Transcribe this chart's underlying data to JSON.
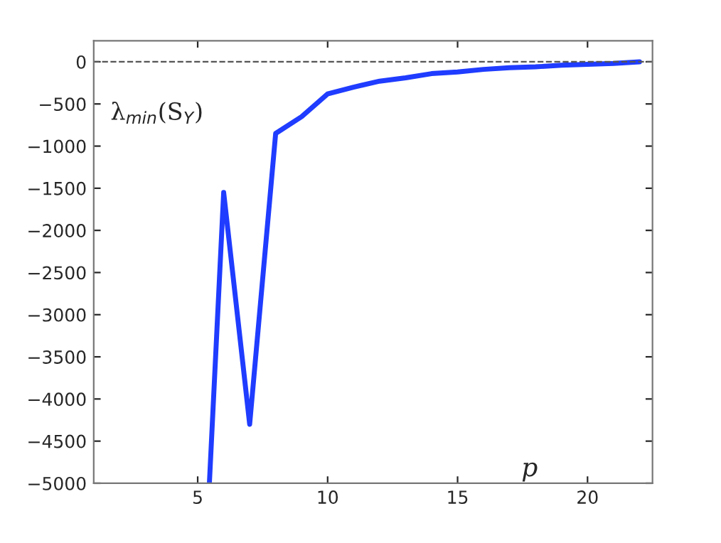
{
  "chart_data": {
    "type": "line",
    "xlabel": "p",
    "ylabel": "λ$_{min}$(S$_{Y}$)",
    "x": [
      5.45,
      6,
      7,
      8,
      9,
      10,
      11,
      12,
      13,
      14,
      15,
      16,
      17,
      18,
      19,
      20,
      21,
      22
    ],
    "series": [
      {
        "color": "#1f3cff",
        "values": [
          -5000,
          -1550,
          -4300,
          -850,
          -650,
          -380,
          -300,
          -230,
          -190,
          -140,
          -120,
          -90,
          -70,
          -60,
          -40,
          -30,
          -20,
          0
        ]
      }
    ],
    "xlim": [
      1,
      22.5
    ],
    "xticks": [
      5,
      10,
      15,
      20
    ],
    "ylim": [
      -5000,
      250
    ],
    "yticks": [
      0,
      -500,
      -1000,
      -1500,
      -2000,
      -2500,
      -3000,
      -3500,
      -4000,
      -4500,
      -5000
    ],
    "ref_lines": [
      {
        "axis": "y",
        "value": 0,
        "color": "#555555",
        "line_style": "dashed"
      }
    ],
    "grid": false,
    "marker": "none",
    "line_style": "solid"
  }
}
